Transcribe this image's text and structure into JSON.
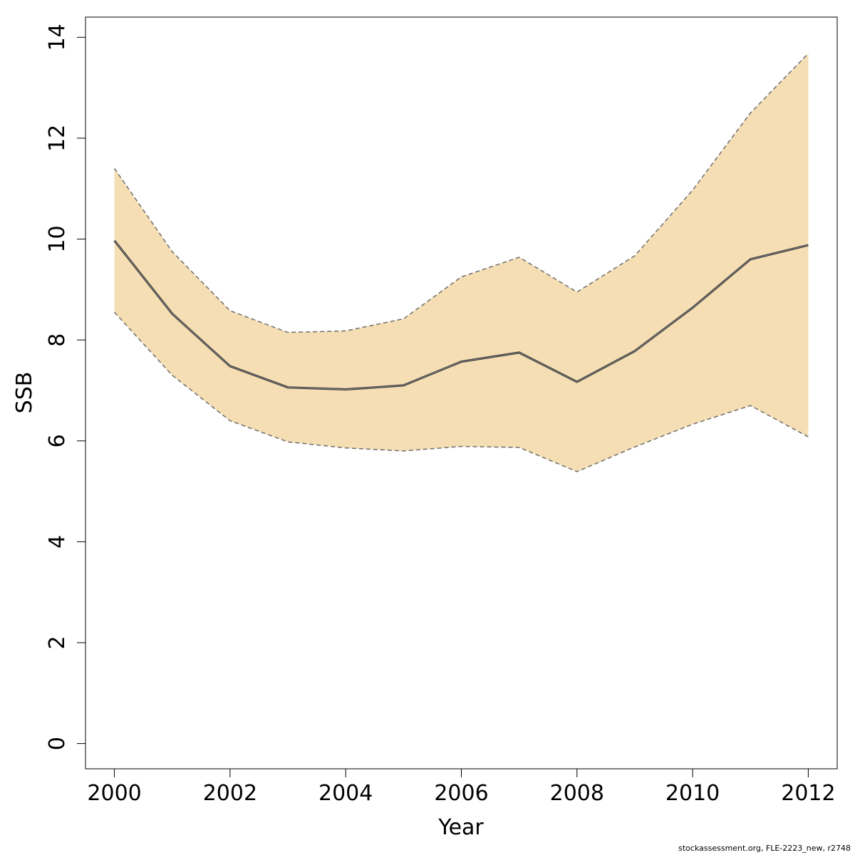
{
  "chart_data": {
    "type": "area",
    "xlabel": "Year",
    "ylabel": "SSB",
    "xlim": [
      1999.5,
      2012.5
    ],
    "ylim": [
      -0.5,
      14.4
    ],
    "xticks": [
      2000,
      2002,
      2004,
      2006,
      2008,
      2010,
      2012
    ],
    "yticks": [
      0,
      2,
      4,
      6,
      8,
      10,
      12,
      14
    ],
    "grid": false,
    "x": [
      2000,
      2001,
      2002,
      2003,
      2004,
      2005,
      2006,
      2007,
      2008,
      2009,
      2010,
      2011,
      2012
    ],
    "series": [
      {
        "role": "estimate",
        "values": [
          9.97,
          8.52,
          7.48,
          7.06,
          7.02,
          7.1,
          7.57,
          7.75,
          7.17,
          7.78,
          8.64,
          9.6,
          9.88
        ]
      },
      {
        "role": "upper",
        "values": [
          11.4,
          9.75,
          8.58,
          8.15,
          8.18,
          8.42,
          9.25,
          9.64,
          8.95,
          9.67,
          10.97,
          12.5,
          13.68
        ]
      },
      {
        "role": "lower",
        "values": [
          8.55,
          7.3,
          6.4,
          5.98,
          5.86,
          5.8,
          5.89,
          5.87,
          5.39,
          5.88,
          6.33,
          6.7,
          6.08
        ]
      }
    ],
    "colors": {
      "band": "#f5deb3",
      "line": "#333333",
      "bound_line": "#6e6e6e",
      "axis": "#000000"
    }
  },
  "footer": {
    "credit": "stockassessment.org, FLE-2223_new, r2748"
  }
}
